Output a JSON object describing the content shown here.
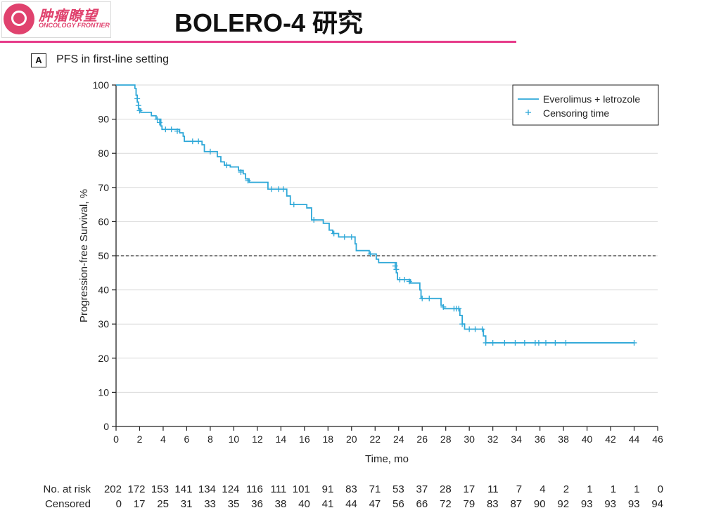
{
  "header": {
    "logo_cn": "肿瘤瞭望",
    "logo_en": "ONCOLOGY FRONTIER",
    "title": "BOLERO-4 研究"
  },
  "panel": {
    "letter": "A",
    "title": "PFS in first-line setting"
  },
  "colors": {
    "curve": "#2fa8d8",
    "accent_rule": "#e63b8a",
    "logo": "#e0426e",
    "grid": "#d9d9d9"
  },
  "chart_data": {
    "type": "line",
    "subtype": "kaplan-meier",
    "xlabel": "Time, mo",
    "ylabel": "Progression-free Survival, %",
    "xlim": [
      0,
      46
    ],
    "ylim": [
      0,
      100
    ],
    "x_ticks": [
      0,
      2,
      4,
      6,
      8,
      10,
      12,
      14,
      16,
      18,
      20,
      22,
      24,
      26,
      28,
      30,
      32,
      34,
      36,
      38,
      40,
      42,
      44,
      46
    ],
    "y_ticks": [
      0,
      10,
      20,
      30,
      40,
      50,
      60,
      70,
      80,
      90,
      100
    ],
    "grid": "horizontal",
    "reference_line": {
      "y": 50,
      "style": "dashed"
    },
    "legend": {
      "position": "top-right",
      "entries": [
        "Everolimus + letrozole",
        "Censoring time"
      ]
    },
    "series": [
      {
        "name": "Everolimus + letrozole",
        "steps": [
          [
            0,
            100
          ],
          [
            1.6,
            99
          ],
          [
            1.7,
            97
          ],
          [
            1.8,
            95
          ],
          [
            1.9,
            93
          ],
          [
            2.1,
            92
          ],
          [
            3.0,
            91
          ],
          [
            3.4,
            90
          ],
          [
            3.8,
            88
          ],
          [
            3.9,
            87
          ],
          [
            5.4,
            86
          ],
          [
            5.7,
            85
          ],
          [
            5.8,
            83.5
          ],
          [
            7.3,
            82.5
          ],
          [
            7.5,
            80.5
          ],
          [
            8.6,
            79
          ],
          [
            8.9,
            77.5
          ],
          [
            9.2,
            76.5
          ],
          [
            9.7,
            76
          ],
          [
            10.4,
            75
          ],
          [
            10.8,
            74
          ],
          [
            11.0,
            72.5
          ],
          [
            11.3,
            71.5
          ],
          [
            12.9,
            69.5
          ],
          [
            14.5,
            67.5
          ],
          [
            14.8,
            65
          ],
          [
            16.2,
            64
          ],
          [
            16.6,
            60.5
          ],
          [
            17.6,
            59.5
          ],
          [
            18.1,
            57.5
          ],
          [
            18.4,
            56.5
          ],
          [
            18.9,
            55.5
          ],
          [
            20.3,
            53.5
          ],
          [
            20.4,
            51.5
          ],
          [
            21.5,
            50.5
          ],
          [
            22.1,
            49
          ],
          [
            22.3,
            48
          ],
          [
            23.8,
            45
          ],
          [
            23.9,
            43
          ],
          [
            25.0,
            42
          ],
          [
            25.8,
            40
          ],
          [
            25.9,
            37.5
          ],
          [
            27.6,
            35.5
          ],
          [
            27.8,
            34.5
          ],
          [
            29.2,
            32.5
          ],
          [
            29.4,
            30
          ],
          [
            29.6,
            28.5
          ],
          [
            31.2,
            26.5
          ],
          [
            31.4,
            24.5
          ],
          [
            44,
            24.5
          ]
        ],
        "censored": [
          [
            1.8,
            96
          ],
          [
            1.9,
            94
          ],
          [
            2.0,
            92.5
          ],
          [
            3.5,
            90
          ],
          [
            3.7,
            89
          ],
          [
            4.2,
            87
          ],
          [
            4.7,
            87
          ],
          [
            5.2,
            86.5
          ],
          [
            6.5,
            83.5
          ],
          [
            7.0,
            83.5
          ],
          [
            8.0,
            80.5
          ],
          [
            9.4,
            76.5
          ],
          [
            10.6,
            74.5
          ],
          [
            11.2,
            72
          ],
          [
            13.2,
            69.5
          ],
          [
            13.8,
            69.5
          ],
          [
            14.2,
            69.5
          ],
          [
            15.1,
            65
          ],
          [
            16.8,
            60.5
          ],
          [
            18.5,
            56.5
          ],
          [
            19.4,
            55.5
          ],
          [
            20.0,
            55.5
          ],
          [
            21.6,
            50.5
          ],
          [
            23.7,
            47
          ],
          [
            23.8,
            46
          ],
          [
            24.1,
            43
          ],
          [
            24.5,
            43
          ],
          [
            24.9,
            42.5
          ],
          [
            26.0,
            37.5
          ],
          [
            26.6,
            37.5
          ],
          [
            27.8,
            35
          ],
          [
            28.7,
            34.5
          ],
          [
            28.9,
            34.5
          ],
          [
            29.1,
            34.5
          ],
          [
            29.4,
            30
          ],
          [
            30.0,
            28.5
          ],
          [
            30.5,
            28.5
          ],
          [
            31.1,
            28.5
          ],
          [
            31.4,
            24.5
          ],
          [
            32.0,
            24.5
          ],
          [
            33.0,
            24.5
          ],
          [
            33.9,
            24.5
          ],
          [
            34.7,
            24.5
          ],
          [
            35.6,
            24.5
          ],
          [
            35.9,
            24.5
          ],
          [
            36.5,
            24.5
          ],
          [
            37.3,
            24.5
          ],
          [
            38.2,
            24.5
          ],
          [
            44.0,
            24.5
          ]
        ]
      }
    ],
    "risk_table": {
      "rows": [
        {
          "label": "No. at risk",
          "values": [
            "202",
            "172",
            "153",
            "141",
            "134",
            "124",
            "116",
            "111",
            "101",
            "91",
            "83",
            "71",
            "53",
            "37",
            "28",
            "17",
            "11",
            "7",
            "4",
            "2",
            "1",
            "1",
            "1",
            "0"
          ]
        },
        {
          "label": "Censored",
          "values": [
            "0",
            "17",
            "25",
            "31",
            "33",
            "35",
            "36",
            "38",
            "40",
            "41",
            "44",
            "47",
            "56",
            "66",
            "72",
            "79",
            "83",
            "87",
            "90",
            "92",
            "93",
            "93",
            "93",
            "94"
          ]
        }
      ]
    }
  }
}
